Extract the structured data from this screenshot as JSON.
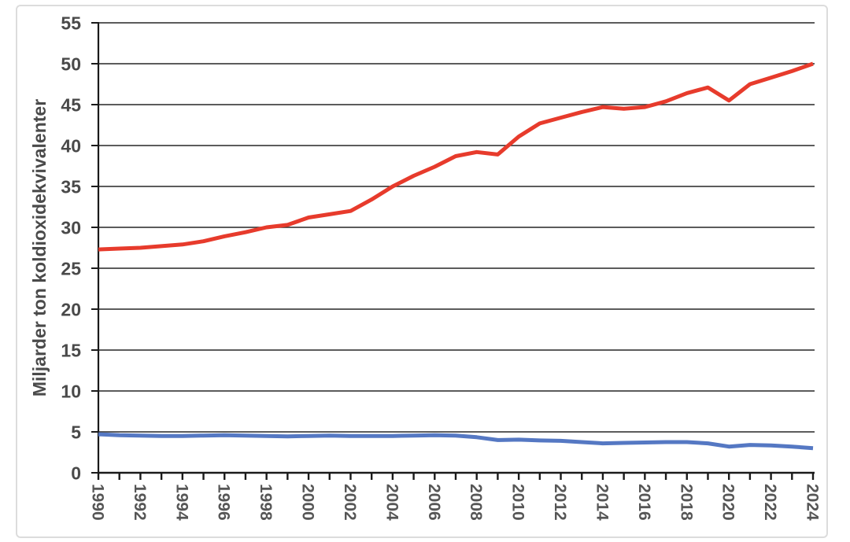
{
  "figure": {
    "background": "#ffffff",
    "frame_border_color": "#dcdcdc"
  },
  "chart_data": {
    "type": "line",
    "title": "",
    "xlabel": "",
    "ylabel": "Miljarder ton koldioxidekvivalenter",
    "ylim": [
      0,
      55
    ],
    "ytick_step": 5,
    "xtick_label_every": 2,
    "grid": "horizontal-only",
    "legend": "none",
    "x": [
      1990,
      1991,
      1992,
      1993,
      1994,
      1995,
      1996,
      1997,
      1998,
      1999,
      2000,
      2001,
      2002,
      2003,
      2004,
      2005,
      2006,
      2007,
      2008,
      2009,
      2010,
      2011,
      2012,
      2013,
      2014,
      2015,
      2016,
      2017,
      2018,
      2019,
      2020,
      2021,
      2022,
      2023,
      2024
    ],
    "series": [
      {
        "name": "red-series",
        "color": "#e73b2c",
        "values": [
          27.3,
          27.4,
          27.5,
          27.7,
          27.9,
          28.3,
          28.9,
          29.4,
          30.0,
          30.3,
          31.2,
          31.6,
          32.0,
          33.4,
          35.0,
          36.3,
          37.4,
          38.7,
          39.2,
          38.9,
          41.1,
          42.7,
          43.4,
          44.1,
          44.7,
          44.5,
          44.7,
          45.4,
          46.4,
          47.1,
          45.5,
          47.5,
          48.3,
          49.1,
          50.0
        ]
      },
      {
        "name": "blue-series",
        "color": "#5578c3",
        "values": [
          4.7,
          4.6,
          4.55,
          4.5,
          4.5,
          4.55,
          4.6,
          4.55,
          4.5,
          4.45,
          4.5,
          4.55,
          4.5,
          4.5,
          4.5,
          4.55,
          4.6,
          4.55,
          4.35,
          4.0,
          4.05,
          3.95,
          3.9,
          3.75,
          3.6,
          3.65,
          3.7,
          3.75,
          3.75,
          3.6,
          3.2,
          3.4,
          3.35,
          3.2,
          3.0
        ]
      }
    ],
    "style": {
      "axis_line_color": "#1a1a1a",
      "gridline_color": "#262626",
      "y_tick_label_color": "#4a4a4a",
      "x_tick_label_color": "#565656",
      "axis_title_color": "#4a4a4a",
      "line_width": 5
    }
  }
}
